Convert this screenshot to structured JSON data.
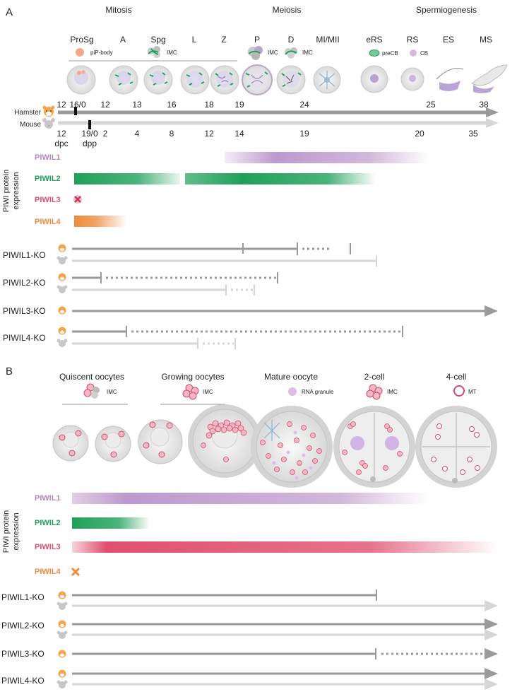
{
  "panel_a": {
    "letter": "A",
    "phases": [
      "Mitosis",
      "Meiosis",
      "Spermiogenesis"
    ],
    "stages": [
      "ProSg",
      "A",
      "Spg",
      "L",
      "Z",
      "P",
      "D",
      "MI/MII",
      "eRS",
      "RS",
      "ES",
      "MS"
    ],
    "legend": {
      "pip": "piP-body",
      "imc": "IMC",
      "precb": "preCB",
      "cb": "CB"
    },
    "timeline": {
      "hamster_label": "Hamster",
      "mouse_label": "Mouse",
      "hamster_ticks": [
        "12",
        "16/0",
        "12",
        "13",
        "16",
        "18",
        "19",
        "24",
        "25",
        "38"
      ],
      "mouse_ticks": [
        "12",
        "19/0",
        "2",
        "4",
        "8",
        "12",
        "14",
        "19",
        "20",
        "35"
      ],
      "unit_dpc": "dpc",
      "unit_dpp": "dpp"
    },
    "expression_axis": [
      "PIWI protein",
      "expression"
    ],
    "proteins": [
      "PIWIL1",
      "PIWIL2",
      "PIWIL3",
      "PIWIL4"
    ],
    "ko": [
      "PIWIL1-KO",
      "PIWIL2-KO",
      "PIWIL3-KO",
      "PIWIL4-KO"
    ]
  },
  "panel_b": {
    "letter": "B",
    "stages": [
      "Quiscent oocytes",
      "Growing oocytes",
      "Mature oocyte",
      "2-cell",
      "4-cell"
    ],
    "legend": {
      "imc1": "IMC",
      "imc2": "IMC",
      "rna": "RNA granule",
      "imc3": "IMC",
      "mt": "MT"
    },
    "expression_axis": [
      "PIWI protein",
      "expression"
    ],
    "proteins": [
      "PIWIL1",
      "PIWIL2",
      "PIWIL3",
      "PIWIL4"
    ],
    "ko": [
      "PIWIL1-KO",
      "PIWIL2-KO",
      "PIWIL3-KO",
      "PIWIL4-KO"
    ]
  },
  "colors": {
    "piwil1": "#b386c4",
    "piwil2": "#1fa05a",
    "piwil3": "#e0506e",
    "piwil4": "#f08a3c",
    "axis": "#9a9a9a",
    "axis_light": "#d6d6d6"
  }
}
